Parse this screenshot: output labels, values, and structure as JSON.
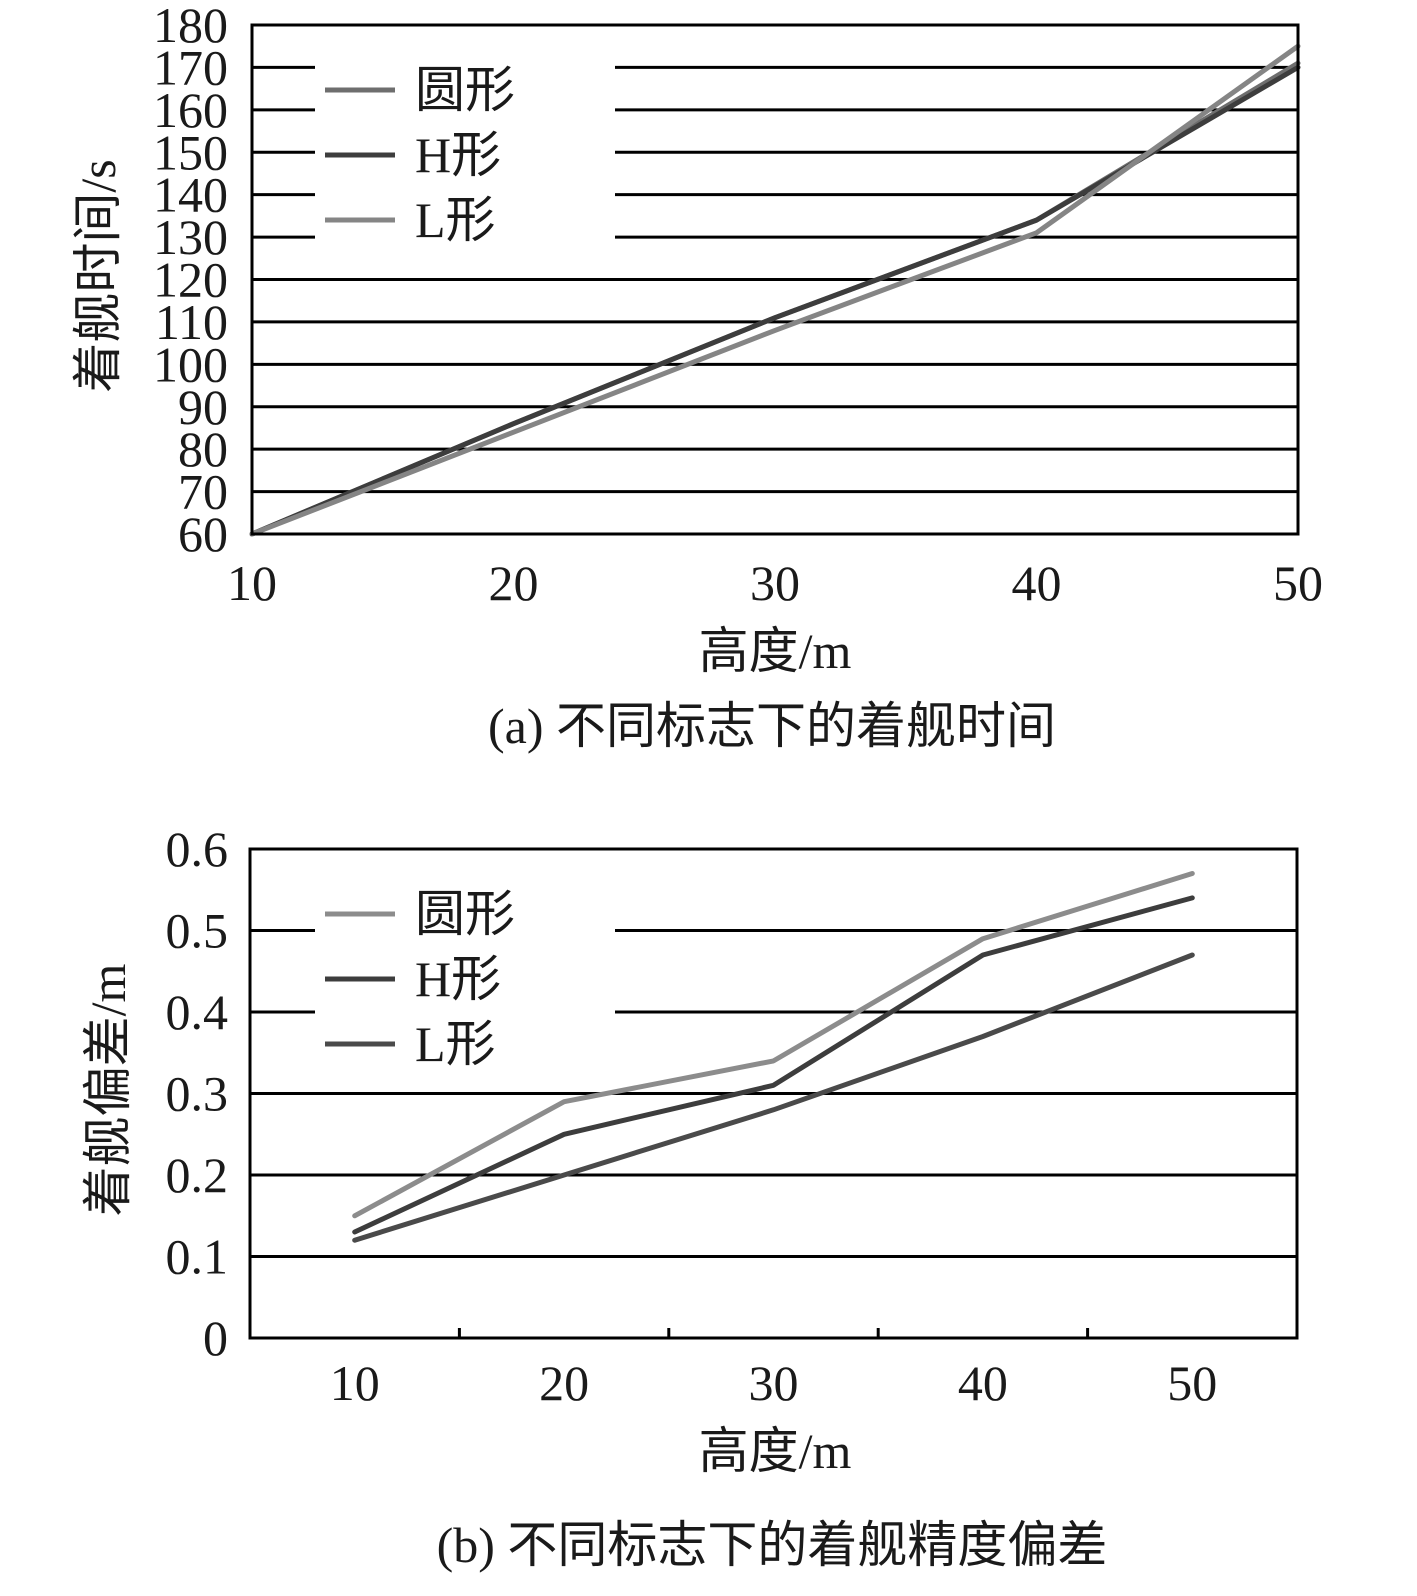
{
  "chart_data": [
    {
      "type": "line",
      "caption": "(a) 不同标志下的着舰时间",
      "xlabel": "高度/m",
      "ylabel": "着舰时间/s",
      "x": [
        10,
        20,
        30,
        40,
        50
      ],
      "x_ticks": [
        "10",
        "20",
        "30",
        "40",
        "50"
      ],
      "y_ticks": [
        "60",
        "70",
        "80",
        "90",
        "100",
        "110",
        "120",
        "130",
        "140",
        "150",
        "160",
        "170",
        "180"
      ],
      "xlim": [
        10,
        50
      ],
      "ylim": [
        60,
        180
      ],
      "grid": "horizontal",
      "legend_position": "top-left",
      "series": [
        {
          "name": "圆形",
          "color": "#6e6e6e",
          "values": [
            60,
            86,
            111,
            134,
            171
          ]
        },
        {
          "name": "H形",
          "color": "#3d3d3d",
          "values": [
            60,
            86,
            111,
            134,
            170
          ]
        },
        {
          "name": "L形",
          "color": "#858585",
          "values": [
            60,
            84,
            108,
            131,
            175
          ]
        }
      ]
    },
    {
      "type": "line",
      "caption": "(b) 不同标志下的着舰精度偏差",
      "xlabel": "高度/m",
      "ylabel": "着舰偏差/m",
      "categories": [
        "10",
        "20",
        "30",
        "40",
        "50"
      ],
      "y_ticks": [
        "0",
        "0.1",
        "0.2",
        "0.3",
        "0.4",
        "0.5",
        "0.6"
      ],
      "ylim": [
        0,
        0.6
      ],
      "grid": "horizontal",
      "legend_position": "top-left",
      "series": [
        {
          "name": "圆形",
          "color": "#8c8c8c",
          "values": [
            0.15,
            0.29,
            0.34,
            0.49,
            0.57
          ]
        },
        {
          "name": "H形",
          "color": "#3d3d3d",
          "values": [
            0.13,
            0.25,
            0.31,
            0.47,
            0.54
          ]
        },
        {
          "name": "L形",
          "color": "#4a4a4a",
          "values": [
            0.12,
            0.2,
            0.28,
            0.37,
            0.47
          ]
        }
      ]
    }
  ]
}
